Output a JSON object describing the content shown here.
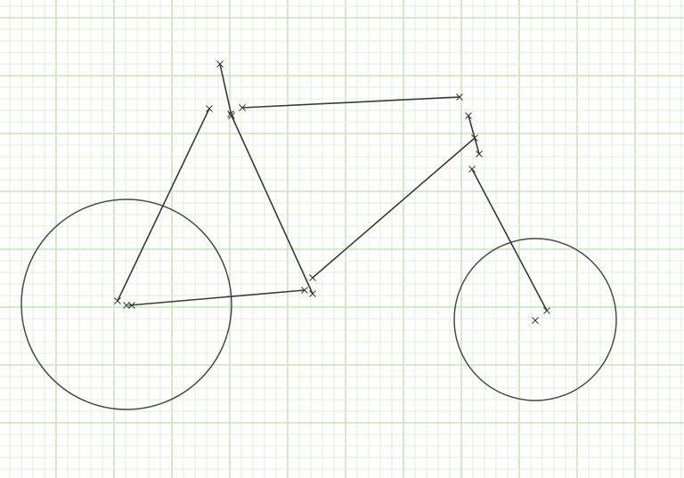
{
  "canvas": {
    "background": "#ffffff",
    "grid_minor_color": "#dcefd2",
    "grid_major_color": "#c7e6b8",
    "line_color": "#3a3a3a"
  },
  "drawing": {
    "subject": "bicycle-sketch",
    "marker_shape": "x",
    "shapes": [
      {
        "name": "rear-wheel",
        "kind": "circle"
      },
      {
        "name": "front-wheel",
        "kind": "circle"
      },
      {
        "name": "seat-stay",
        "kind": "line"
      },
      {
        "name": "seat-post",
        "kind": "line"
      },
      {
        "name": "seat-tube",
        "kind": "line"
      },
      {
        "name": "top-tube",
        "kind": "line"
      },
      {
        "name": "down-tube",
        "kind": "line"
      },
      {
        "name": "chain-stay",
        "kind": "line"
      },
      {
        "name": "head-tube",
        "kind": "line"
      },
      {
        "name": "fork",
        "kind": "line"
      }
    ]
  }
}
